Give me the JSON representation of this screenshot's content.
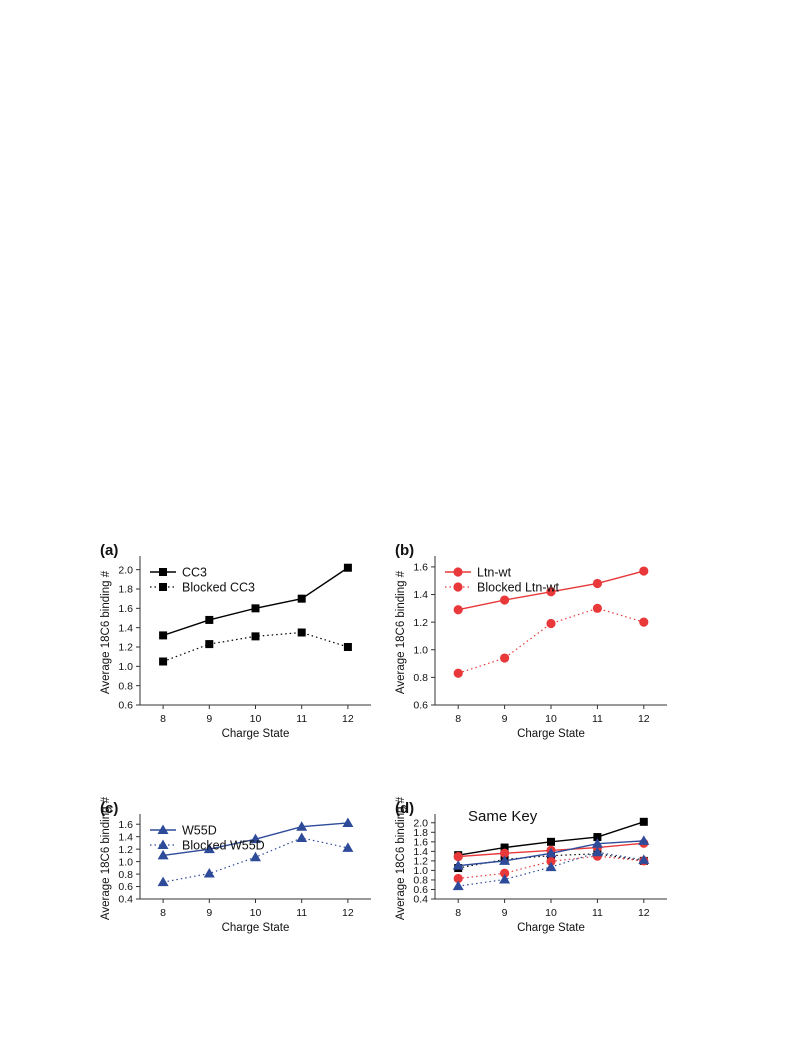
{
  "figure": {
    "panels": [
      {
        "id": "a",
        "tag": "(a)",
        "xlabel": "Charge State",
        "ylabel": "Average 18C6 binding #",
        "xticks": [
          8,
          9,
          10,
          11,
          12
        ],
        "yticks": [
          "0.6",
          "0.8",
          "1.0",
          "1.2",
          "1.4",
          "1.6",
          "1.8",
          "2.0"
        ],
        "ylim": [
          0.6,
          2.1
        ],
        "legend": true,
        "note": ""
      },
      {
        "id": "b",
        "tag": "(b)",
        "xlabel": "Charge State",
        "ylabel": "Average 18C6 binding #",
        "xticks": [
          8,
          9,
          10,
          11,
          12
        ],
        "yticks": [
          "0.6",
          "0.8",
          "1.0",
          "1.2",
          "1.4",
          "1.6"
        ],
        "ylim": [
          0.6,
          1.65
        ],
        "legend": true,
        "note": ""
      },
      {
        "id": "c",
        "tag": "(c)",
        "xlabel": "Charge State",
        "ylabel": "Average 18C6 binding #",
        "xticks": [
          8,
          9,
          10,
          11,
          12
        ],
        "yticks": [
          "0.4",
          "0.6",
          "0.8",
          "1.0",
          "1.2",
          "1.4",
          "1.6"
        ],
        "ylim": [
          0.4,
          1.7
        ],
        "legend": true,
        "note": ""
      },
      {
        "id": "d",
        "tag": "(d)",
        "xlabel": "Charge State",
        "ylabel": "Average 18C6 binding #",
        "xticks": [
          8,
          9,
          10,
          11,
          12
        ],
        "yticks": [
          "0.4",
          "0.6",
          "0.8",
          "1.0",
          "1.2",
          "1.4",
          "1.6",
          "1.8",
          "2.0"
        ],
        "ylim": [
          0.4,
          2.1
        ],
        "legend": false,
        "note": "Same Key"
      }
    ]
  },
  "chart_data": [
    {
      "type": "line",
      "panel": "a",
      "x": [
        8,
        9,
        10,
        11,
        12
      ],
      "series": [
        {
          "name": "CC3",
          "values": [
            1.32,
            1.48,
            1.6,
            1.7,
            2.02
          ],
          "color": "#000000",
          "marker": "square",
          "dashed": false
        },
        {
          "name": "Blocked CC3",
          "values": [
            1.05,
            1.23,
            1.31,
            1.35,
            1.2
          ],
          "color": "#000000",
          "marker": "square",
          "dashed": true
        }
      ]
    },
    {
      "type": "line",
      "panel": "b",
      "x": [
        8,
        9,
        10,
        11,
        12
      ],
      "series": [
        {
          "name": "Ltn-wt",
          "values": [
            1.29,
            1.36,
            1.42,
            1.48,
            1.57
          ],
          "color": "#e8383a",
          "marker": "circle",
          "dashed": false
        },
        {
          "name": "Blocked Ltn-wt",
          "values": [
            0.83,
            0.94,
            1.19,
            1.3,
            1.2
          ],
          "color": "#e8383a",
          "marker": "circle",
          "dashed": true
        }
      ]
    },
    {
      "type": "line",
      "panel": "c",
      "x": [
        8,
        9,
        10,
        11,
        12
      ],
      "series": [
        {
          "name": "W55D",
          "values": [
            1.1,
            1.2,
            1.36,
            1.56,
            1.62
          ],
          "color": "#2e4b9a",
          "marker": "triangle",
          "dashed": false
        },
        {
          "name": "Blocked W55D",
          "values": [
            0.67,
            0.81,
            1.07,
            1.38,
            1.22
          ],
          "color": "#2e4b9a",
          "marker": "triangle",
          "dashed": true
        }
      ]
    },
    {
      "type": "line",
      "panel": "d",
      "x": [
        8,
        9,
        10,
        11,
        12
      ],
      "series": [
        {
          "values": [
            1.32,
            1.48,
            1.6,
            1.7,
            2.02
          ],
          "color": "#000000",
          "marker": "square",
          "dashed": false
        },
        {
          "values": [
            1.05,
            1.23,
            1.31,
            1.35,
            1.2
          ],
          "color": "#000000",
          "marker": "square",
          "dashed": true
        },
        {
          "values": [
            1.29,
            1.36,
            1.42,
            1.48,
            1.57
          ],
          "color": "#e8383a",
          "marker": "circle",
          "dashed": false
        },
        {
          "values": [
            0.83,
            0.94,
            1.19,
            1.3,
            1.2
          ],
          "color": "#e8383a",
          "marker": "circle",
          "dashed": true
        },
        {
          "values": [
            1.1,
            1.2,
            1.36,
            1.56,
            1.62
          ],
          "color": "#2e4b9a",
          "marker": "triangle",
          "dashed": false
        },
        {
          "values": [
            0.67,
            0.81,
            1.07,
            1.38,
            1.22
          ],
          "color": "#2e4b9a",
          "marker": "triangle",
          "dashed": true
        }
      ]
    }
  ]
}
